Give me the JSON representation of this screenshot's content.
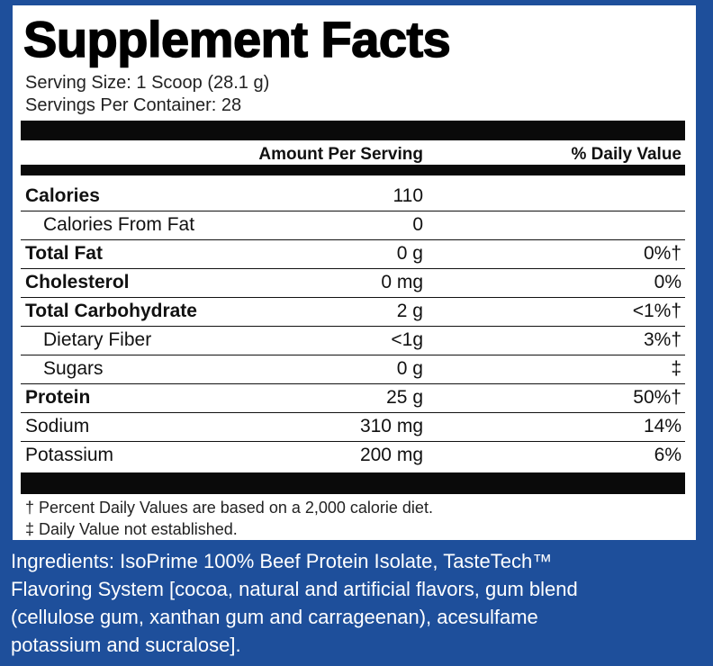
{
  "title": "Supplement Facts",
  "serving_size": "Serving Size: 1 Scoop (28.1 g)",
  "servings_per_container": "Servings Per Container: 28",
  "header": {
    "amount_label": "Amount Per Serving",
    "dv_label": "% Daily Value"
  },
  "rows": [
    {
      "label": "Calories",
      "amount": "110",
      "dv": ""
    },
    {
      "label": "Calories From Fat",
      "amount": "0",
      "dv": ""
    },
    {
      "label": "Total Fat",
      "amount": "0 g",
      "dv": "0%†"
    },
    {
      "label": "Cholesterol",
      "amount": "0 mg",
      "dv": "0%"
    },
    {
      "label": "Total Carbohydrate",
      "amount": "2 g",
      "dv": "<1%†"
    },
    {
      "label": "Dietary Fiber",
      "amount": "<1g",
      "dv": "3%†"
    },
    {
      "label": "Sugars",
      "amount": "0 g",
      "dv": "‡"
    },
    {
      "label": "Protein",
      "amount": "25 g",
      "dv": "50%†"
    },
    {
      "label": "Sodium",
      "amount": "310 mg",
      "dv": "14%"
    },
    {
      "label": "Potassium",
      "amount": "200 mg",
      "dv": "6%"
    }
  ],
  "footnotes": [
    "† Percent Daily Values are based on a 2,000 calorie diet.",
    "‡ Daily Value not established."
  ],
  "ingredients": [
    "Ingredients: IsoPrime 100% Beef Protein Isolate, TasteTech™",
    "Flavoring System [cocoa, natural and artificial flavors, gum blend",
    "(cellulose gum, xanthan gum and carrageenan), acesulfame",
    "potassium and sucralose]."
  ],
  "colors": {
    "background_blue": "#1e4f9b",
    "panel_white": "#ffffff",
    "bar_black": "#0a0a0a"
  }
}
